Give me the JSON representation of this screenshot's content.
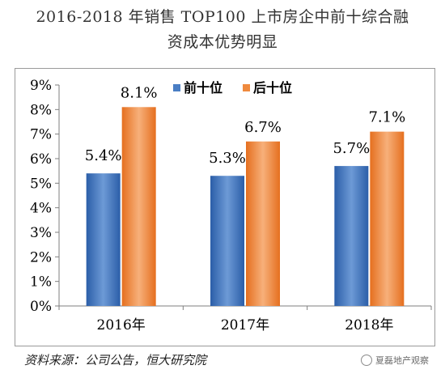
{
  "title_line_1": "2016-2018 年销售 TOP100 上市房企中前十综合融",
  "title_line_2": "资成本优势明显",
  "source_note": "资料来源：公司公告，恒大研究院",
  "watermark": "夏磊地产观察",
  "chart_data": {
    "type": "bar",
    "categories": [
      "2016年",
      "2017年",
      "2018年"
    ],
    "series": [
      {
        "name": "前十位",
        "values": [
          5.4,
          5.3,
          5.7
        ],
        "labels": [
          "5.4%",
          "5.3%",
          "5.7%"
        ],
        "color": "#4a7ec4"
      },
      {
        "name": "后十位",
        "values": [
          8.1,
          6.7,
          7.1
        ],
        "labels": [
          "8.1%",
          "6.7%",
          "7.1%"
        ],
        "color": "#ef8a3e"
      }
    ],
    "yticks": [
      "0%",
      "1%",
      "2%",
      "3%",
      "4%",
      "5%",
      "6%",
      "7%",
      "8%",
      "9%"
    ],
    "ylim": [
      0,
      9
    ],
    "legend_position": "top-center",
    "grid": false
  }
}
